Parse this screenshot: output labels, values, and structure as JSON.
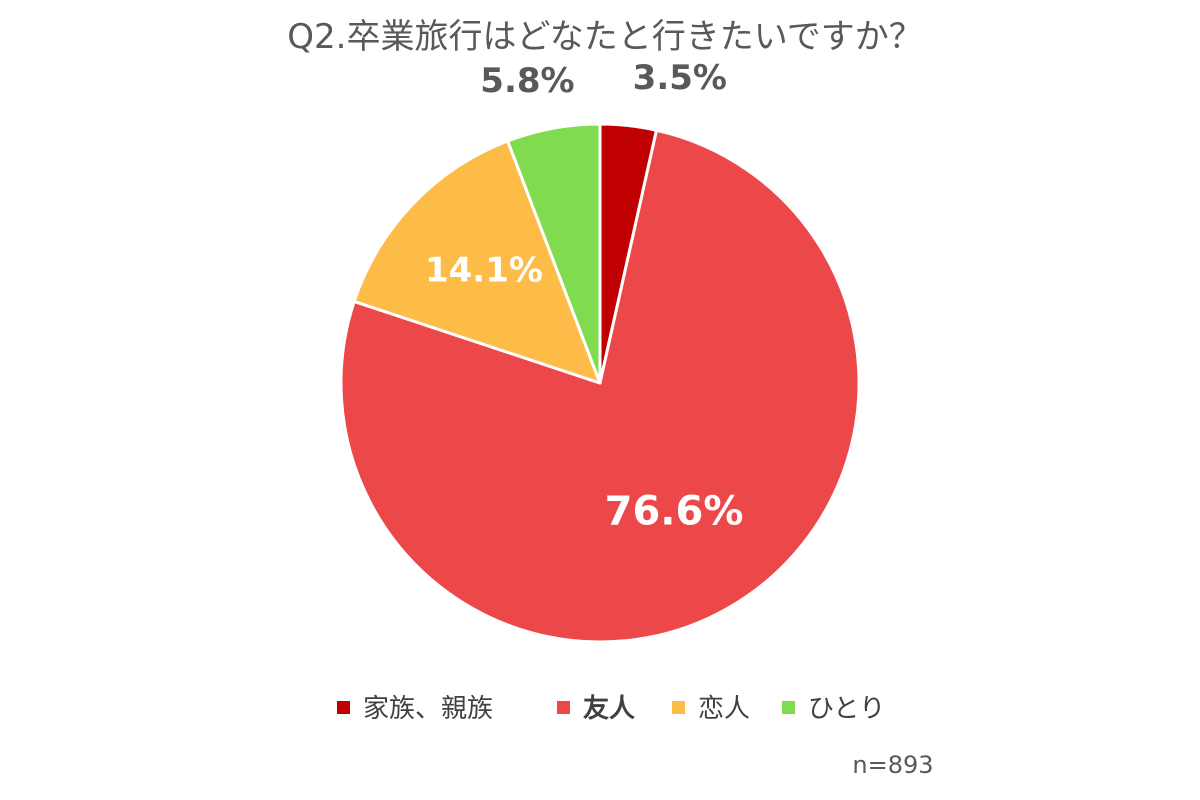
{
  "chart_data": {
    "type": "pie",
    "title": "Q2.卒業旅行はどなたと行きたいですか？",
    "categories": [
      "家族、親族",
      "友人",
      "恋人",
      "ひとり"
    ],
    "values": [
      3.5,
      76.6,
      14.1,
      5.8
    ],
    "value_labels": [
      "3.5%",
      "76.6%",
      "14.1%",
      "5.8%"
    ],
    "colors": [
      "#C00000",
      "#EC4849",
      "#FDBB47",
      "#80DC4E"
    ],
    "legend_bold": [
      false,
      true,
      false,
      false
    ],
    "start": "12 o'clock",
    "direction": "clockwise",
    "legend": "bottom",
    "note": "n=893"
  }
}
